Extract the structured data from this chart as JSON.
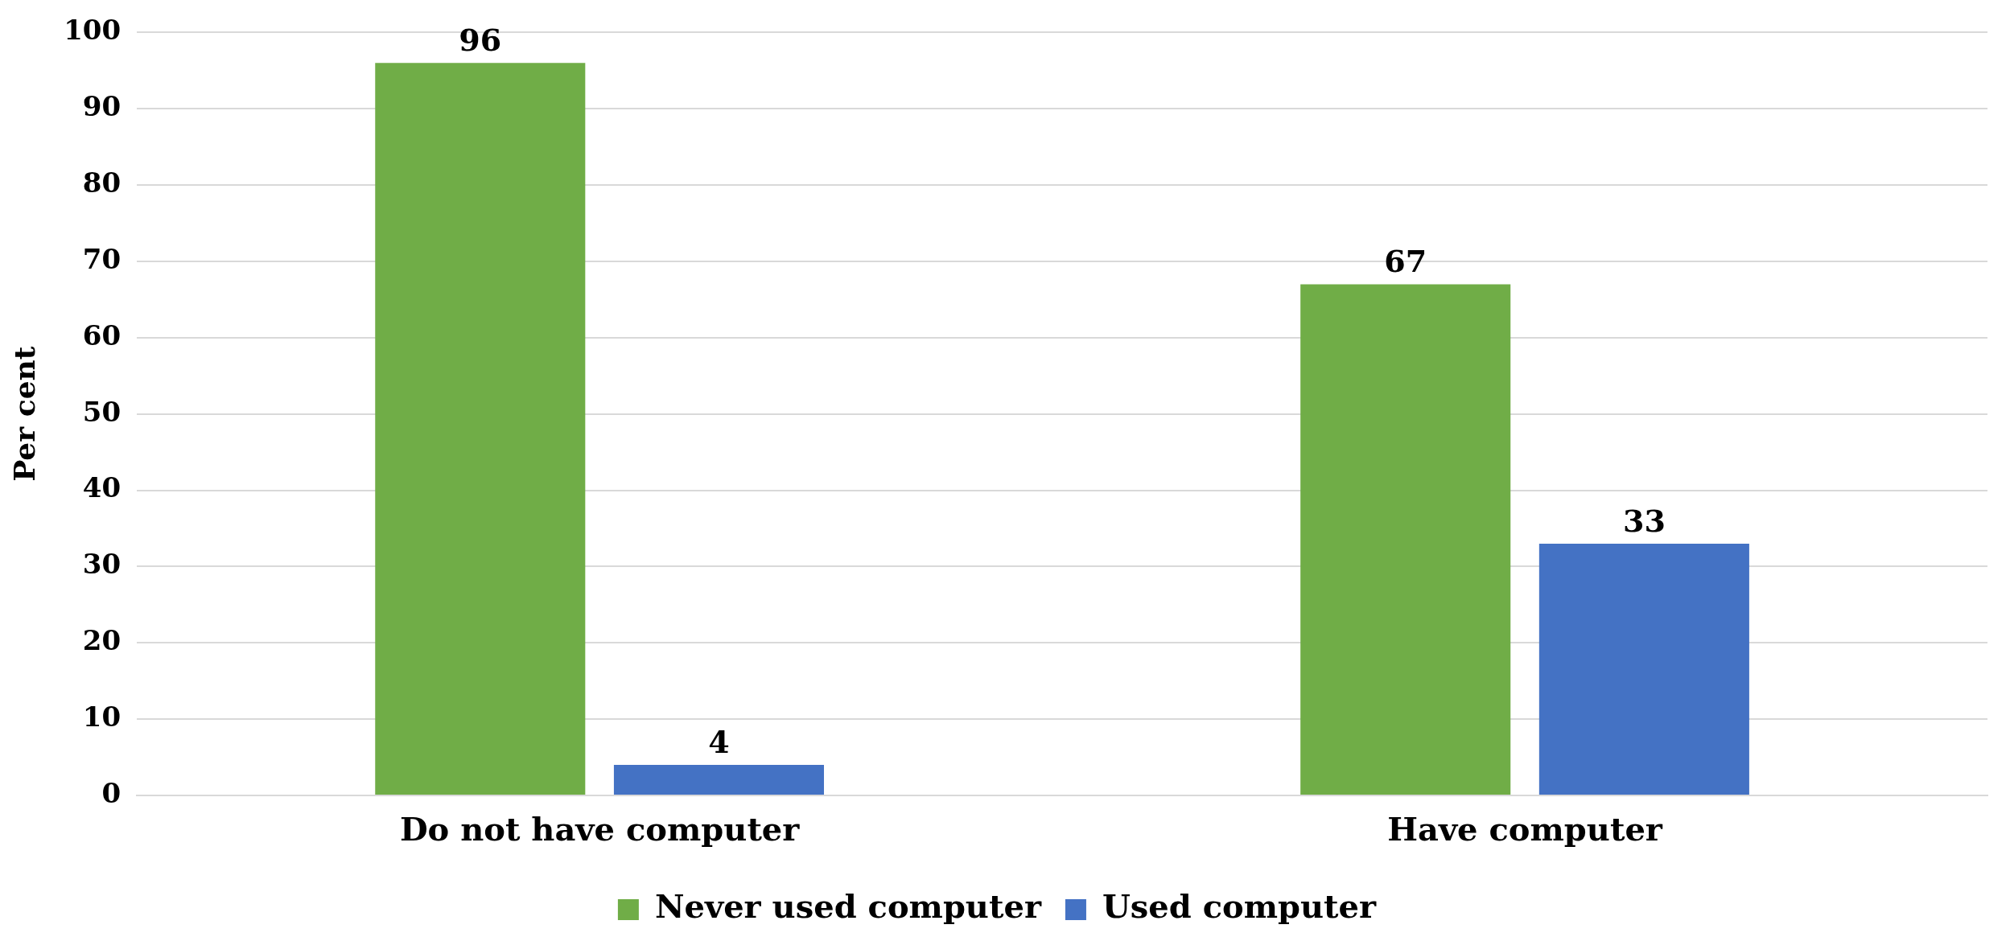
{
  "chart_data": {
    "type": "bar",
    "ylabel": "Per cent",
    "categories": [
      "Do not have computer",
      "Have computer"
    ],
    "series": [
      {
        "name": "Never used computer",
        "color": "#70ad47",
        "values": [
          96,
          67
        ]
      },
      {
        "name": "Used computer",
        "color": "#4472c4",
        "values": [
          4,
          33
        ]
      }
    ],
    "ylim": [
      0,
      100
    ],
    "yticks": [
      0,
      10,
      20,
      30,
      40,
      50,
      60,
      70,
      80,
      90,
      100
    ],
    "grid": "y",
    "legend": "bottom",
    "data_labels": true
  }
}
